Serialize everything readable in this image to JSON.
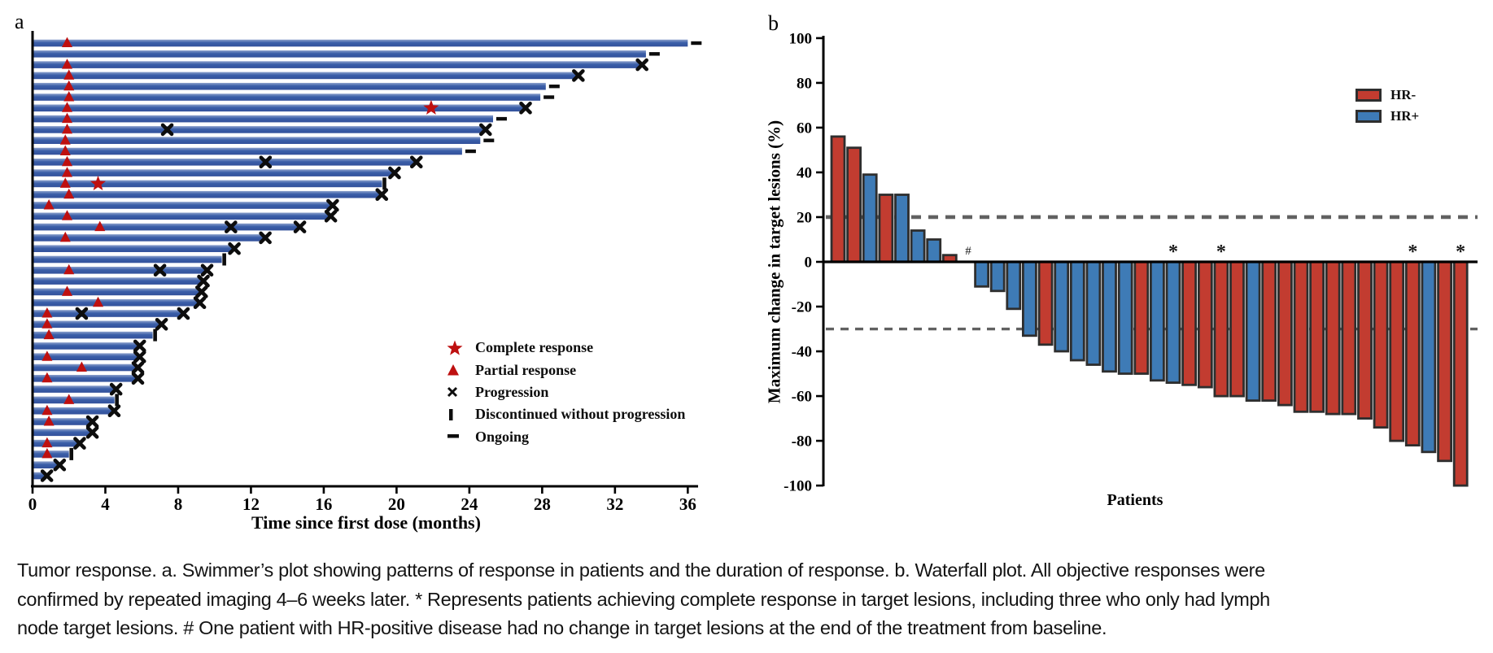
{
  "panels": {
    "a_label": "a",
    "b_label": "b"
  },
  "caption": {
    "lines": [
      "Tumor response. a. Swimmer’s plot showing patterns of response in patients and the duration of response. b. Waterfall plot. All objective responses were",
      "confirmed by repeated imaging 4–6 weeks later. * Represents patients achieving complete response in target lesions, including three who only had lymph",
      "node target lesions. # One patient with HR-positive disease had no change in target lesions at the end of the treatment from baseline."
    ]
  },
  "chart_data": [
    {
      "type": "swimmer",
      "xlabel": "Time since first dose (months)",
      "xlim": [
        0,
        38
      ],
      "xticks": [
        0,
        4,
        8,
        12,
        16,
        20,
        24,
        28,
        32,
        36
      ],
      "grid": false,
      "legend_position": "center-right",
      "legend": [
        {
          "marker": "star",
          "label": "Complete response"
        },
        {
          "marker": "triangle",
          "label": "Partial response"
        },
        {
          "marker": "x",
          "label": "Progression"
        },
        {
          "marker": "bar",
          "label": "Discontinued without progression"
        },
        {
          "marker": "dash",
          "label": "Ongoing"
        }
      ],
      "colors": {
        "bar": "#3A5EA8",
        "bar_top": "#8BA0CC",
        "bar_bottom": "#33519B",
        "response": "#BE1010",
        "marker_black": "#0d0d0d"
      },
      "bars": [
        {
          "months": 36.0,
          "end": "ongoing",
          "partial": 1.9
        },
        {
          "months": 33.7,
          "end": "ongoing"
        },
        {
          "months": 33.4,
          "end": "progression",
          "partial": 1.9
        },
        {
          "months": 29.9,
          "end": "progression",
          "partial": 2.0
        },
        {
          "months": 28.2,
          "end": "ongoing",
          "partial": 2.0
        },
        {
          "months": 27.9,
          "end": "ongoing",
          "partial": 2.0
        },
        {
          "months": 27.0,
          "end": "progression",
          "partial": 1.9,
          "complete": 21.9
        },
        {
          "months": 25.3,
          "end": "ongoing",
          "partial": 1.9
        },
        {
          "months": 24.8,
          "end": "progression",
          "partial": 1.9,
          "progress_marks": [
            7.4
          ]
        },
        {
          "months": 24.6,
          "end": "ongoing",
          "partial": 1.8
        },
        {
          "months": 23.6,
          "end": "ongoing",
          "partial": 1.8
        },
        {
          "months": 21.0,
          "end": "progression",
          "partial": 1.9,
          "progress_marks": [
            12.8
          ]
        },
        {
          "months": 19.8,
          "end": "progression",
          "partial": 1.9
        },
        {
          "months": 19.2,
          "end": "discontinued",
          "partial": 1.8,
          "complete": 3.6
        },
        {
          "months": 19.1,
          "end": "progression",
          "partial": 2.0
        },
        {
          "months": 16.4,
          "end": "progression",
          "partial": 0.9
        },
        {
          "months": 16.3,
          "end": "progression",
          "partial": 1.9
        },
        {
          "months": 14.6,
          "end": "progression",
          "partial": 3.7,
          "progress_marks": [
            10.9
          ]
        },
        {
          "months": 12.7,
          "end": "progression",
          "partial": 1.8
        },
        {
          "months": 11.0,
          "end": "progression"
        },
        {
          "months": 10.4,
          "end": "discontinued"
        },
        {
          "months": 9.5,
          "end": "progression",
          "partial": 2.0,
          "progress_marks": [
            7.0
          ]
        },
        {
          "months": 9.3,
          "end": "progression"
        },
        {
          "months": 9.2,
          "end": "progression",
          "partial": 1.9
        },
        {
          "months": 9.1,
          "end": "progression",
          "partial": 3.6
        },
        {
          "months": 8.2,
          "end": "progression",
          "partial": 0.8,
          "progress_marks": [
            2.7
          ]
        },
        {
          "months": 7.0,
          "end": "progression",
          "partial": 0.8
        },
        {
          "months": 6.6,
          "end": "discontinued",
          "partial": 0.9
        },
        {
          "months": 5.8,
          "end": "progression"
        },
        {
          "months": 5.8,
          "end": "progression",
          "partial": 0.8
        },
        {
          "months": 5.7,
          "end": "progression",
          "partial": 2.7
        },
        {
          "months": 5.7,
          "end": "progression",
          "partial": 0.8
        },
        {
          "months": 4.5,
          "end": "progression"
        },
        {
          "months": 4.5,
          "end": "discontinued",
          "partial": 2.0
        },
        {
          "months": 4.4,
          "end": "progression",
          "partial": 0.8
        },
        {
          "months": 3.2,
          "end": "progression",
          "partial": 0.9
        },
        {
          "months": 3.2,
          "end": "progression"
        },
        {
          "months": 2.5,
          "end": "progression",
          "partial": 0.8
        },
        {
          "months": 2.0,
          "end": "discontinued",
          "partial": 0.8
        },
        {
          "months": 1.4,
          "end": "progression"
        },
        {
          "months": 0.7,
          "end": "progression"
        }
      ]
    },
    {
      "type": "bar",
      "subtype": "waterfall",
      "xlabel": "Patients",
      "ylabel": "Maximum change in target lesions (%)",
      "ylim": [
        -100,
        100
      ],
      "yticks": [
        100,
        80,
        60,
        40,
        20,
        0,
        -20,
        -40,
        -60,
        -80,
        -100
      ],
      "ref_lines": [
        20,
        -30
      ],
      "grid": false,
      "legend_position": "top-right",
      "legend": [
        {
          "label": "HR-",
          "key": "hr_neg"
        },
        {
          "label": "HR+",
          "key": "hr_pos"
        }
      ],
      "colors": {
        "hr_neg": "#C23C30",
        "hr_pos": "#3E7BB6",
        "outline": "#2E2E2E",
        "dashed": "#616161"
      },
      "annotations": {
        "hash_symbol": "#",
        "hash_index": 9,
        "star_symbol": "*",
        "star_indices": [
          22,
          25,
          37,
          40
        ]
      },
      "patients": [
        {
          "value": 56,
          "group": "HR-"
        },
        {
          "value": 51,
          "group": "HR-"
        },
        {
          "value": 39,
          "group": "HR+"
        },
        {
          "value": 30,
          "group": "HR-"
        },
        {
          "value": 30,
          "group": "HR+"
        },
        {
          "value": 14,
          "group": "HR+"
        },
        {
          "value": 10,
          "group": "HR+"
        },
        {
          "value": 3,
          "group": "HR-"
        },
        {
          "value": 0,
          "group": "HR+"
        },
        {
          "value": -11,
          "group": "HR+"
        },
        {
          "value": -13,
          "group": "HR+"
        },
        {
          "value": -21,
          "group": "HR+"
        },
        {
          "value": -33,
          "group": "HR+"
        },
        {
          "value": -37,
          "group": "HR-"
        },
        {
          "value": -40,
          "group": "HR+"
        },
        {
          "value": -44,
          "group": "HR+"
        },
        {
          "value": -46,
          "group": "HR+"
        },
        {
          "value": -49,
          "group": "HR+"
        },
        {
          "value": -50,
          "group": "HR+"
        },
        {
          "value": -50,
          "group": "HR-"
        },
        {
          "value": -53,
          "group": "HR+"
        },
        {
          "value": -54,
          "group": "HR+"
        },
        {
          "value": -55,
          "group": "HR-"
        },
        {
          "value": -56,
          "group": "HR-"
        },
        {
          "value": -60,
          "group": "HR-"
        },
        {
          "value": -60,
          "group": "HR-"
        },
        {
          "value": -62,
          "group": "HR+"
        },
        {
          "value": -62,
          "group": "HR-"
        },
        {
          "value": -64,
          "group": "HR-"
        },
        {
          "value": -67,
          "group": "HR-"
        },
        {
          "value": -67,
          "group": "HR-"
        },
        {
          "value": -68,
          "group": "HR-"
        },
        {
          "value": -68,
          "group": "HR-"
        },
        {
          "value": -70,
          "group": "HR-"
        },
        {
          "value": -74,
          "group": "HR-"
        },
        {
          "value": -80,
          "group": "HR-"
        },
        {
          "value": -82,
          "group": "HR-"
        },
        {
          "value": -85,
          "group": "HR+"
        },
        {
          "value": -89,
          "group": "HR-"
        },
        {
          "value": -100,
          "group": "HR-"
        }
      ]
    }
  ]
}
